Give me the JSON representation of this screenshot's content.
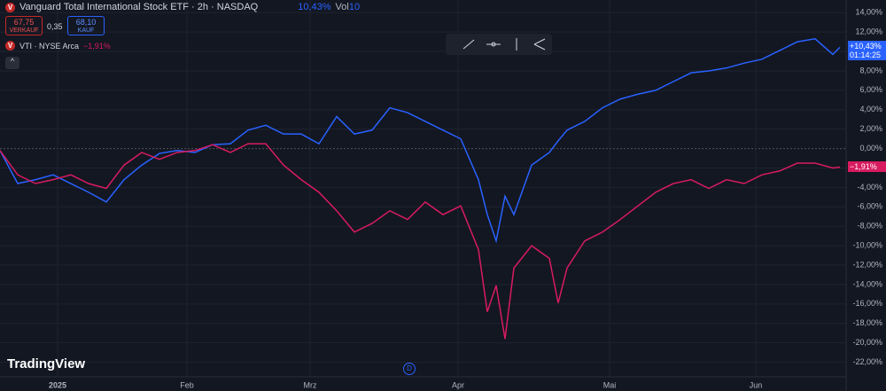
{
  "header": {
    "title": "Vanguard Total International Stock ETF · 2h · NASDAQ",
    "change": "10,43%",
    "vol_label": "Vol",
    "vol_value": "10"
  },
  "trade": {
    "sell_price": "67,75",
    "sell_label": "VERKAUF",
    "spread": "0,35",
    "buy_price": "68,10",
    "buy_label": "KAUF"
  },
  "compare": {
    "symbol": "VTI · NYSE Arca",
    "change": "−1,91%"
  },
  "logo": "TradingView",
  "marker": "D",
  "chart_data": {
    "type": "line",
    "x": [
      0,
      2,
      4,
      6,
      8,
      10,
      12,
      14,
      16,
      18,
      20,
      22,
      24,
      26,
      28,
      30,
      32,
      34,
      36,
      38,
      40,
      42,
      44,
      46,
      48,
      50,
      52,
      54,
      55,
      56,
      57,
      58,
      60,
      62,
      63,
      64,
      66,
      68,
      70,
      72,
      74,
      76,
      78,
      80,
      82,
      84,
      86,
      88,
      90,
      92,
      94,
      94.8
    ],
    "series": [
      {
        "name": "Vanguard Total International Stock ETF",
        "color": "#2962ff",
        "price_label": "+10,43%",
        "countdown": "01:14:25",
        "values": [
          -0.2,
          -3.6,
          -3.2,
          -2.7,
          -3.6,
          -4.5,
          -5.5,
          -3.2,
          -1.7,
          -0.5,
          -0.2,
          -0.4,
          0.4,
          0.5,
          1.9,
          2.4,
          1.5,
          1.5,
          0.5,
          3.3,
          1.5,
          1.9,
          4.2,
          3.7,
          2.8,
          1.9,
          1.0,
          -3.2,
          -6.8,
          -9.5,
          -4.9,
          -6.8,
          -1.7,
          -0.4,
          0.8,
          1.9,
          2.8,
          4.2,
          5.1,
          5.6,
          6.0,
          6.9,
          7.8,
          8.0,
          8.3,
          8.8,
          9.2,
          10.1,
          11.0,
          11.3,
          9.7,
          10.43
        ]
      },
      {
        "name": "VTI",
        "color": "#d81b60",
        "price_label": "−1,91%",
        "values": [
          -0.2,
          -2.7,
          -3.6,
          -3.2,
          -2.7,
          -3.6,
          -4.1,
          -1.7,
          -0.4,
          -1.1,
          -0.4,
          -0.2,
          0.4,
          -0.4,
          0.5,
          0.5,
          -1.7,
          -3.2,
          -4.5,
          -6.4,
          -8.6,
          -7.7,
          -6.4,
          -7.3,
          -5.5,
          -6.8,
          -5.9,
          -10.4,
          -16.8,
          -14.1,
          -19.6,
          -12.3,
          -10.0,
          -11.3,
          -15.9,
          -12.3,
          -9.5,
          -8.6,
          -7.3,
          -5.9,
          -4.5,
          -3.6,
          -3.2,
          -4.1,
          -3.2,
          -3.6,
          -2.7,
          -2.3,
          -1.5,
          -1.5,
          -2.0,
          -1.91
        ]
      }
    ],
    "xlim": [
      0,
      95.5
    ],
    "xticks": [
      {
        "value": 6.5,
        "label": "2025"
      },
      {
        "value": 21.1,
        "label": "Feb"
      },
      {
        "value": 35,
        "label": "Mrz"
      },
      {
        "value": 51.7,
        "label": "Apr"
      },
      {
        "value": 68.8,
        "label": "Mai"
      },
      {
        "value": 85.3,
        "label": "Jun"
      }
    ],
    "ylim": [
      -23.5,
      15.3
    ],
    "yticks": [
      {
        "value": 14,
        "label": "14,00%"
      },
      {
        "value": 12,
        "label": "12,00%"
      },
      {
        "value": 10,
        "label": "10,00%"
      },
      {
        "value": 8,
        "label": "8,00%"
      },
      {
        "value": 6,
        "label": "6,00%"
      },
      {
        "value": 4,
        "label": "4,00%"
      },
      {
        "value": 2,
        "label": "2,00%"
      },
      {
        "value": 0,
        "label": "0,00%"
      },
      {
        "value": -2,
        "label": "-2,00%"
      },
      {
        "value": -4,
        "label": "-4,00%"
      },
      {
        "value": -6,
        "label": "-6,00%"
      },
      {
        "value": -8,
        "label": "-8,00%"
      },
      {
        "value": -10,
        "label": "-10,00%"
      },
      {
        "value": -12,
        "label": "-12,00%"
      },
      {
        "value": -14,
        "label": "-14,00%"
      },
      {
        "value": -16,
        "label": "-16,00%"
      },
      {
        "value": -18,
        "label": "-18,00%"
      },
      {
        "value": -20,
        "label": "-20,00%"
      },
      {
        "value": -22,
        "label": "-22,00%"
      }
    ],
    "grid": true
  }
}
